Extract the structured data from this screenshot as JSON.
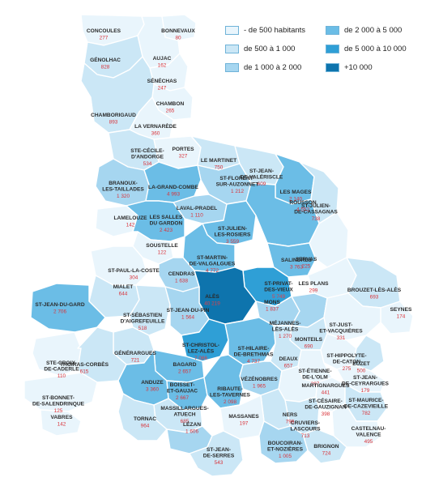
{
  "legend": [
    {
      "label": "- de 500 habitants",
      "color": "#e9f5fc"
    },
    {
      "label": "de 500 à 1 000",
      "color": "#cbe7f6"
    },
    {
      "label": "de 1 000 à 2 000",
      "color": "#a6d6f0"
    },
    {
      "label": "de 2 000 à 5 000",
      "color": "#6bbde6"
    },
    {
      "label": "de 5 000 à 10 000",
      "color": "#2f9fd6"
    },
    {
      "label": "+10 000",
      "color": "#0e74ad"
    }
  ],
  "communes": [
    {
      "name": [
        "CONCOULES"
      ],
      "pop": "277",
      "cls": 0
    },
    {
      "name": [
        "BONNEVAUX"
      ],
      "pop": "80",
      "cls": 0
    },
    {
      "name": [
        "AUJAC"
      ],
      "pop": "162",
      "cls": 0
    },
    {
      "name": [
        "GÉNOLHAC"
      ],
      "pop": "828",
      "cls": 1
    },
    {
      "name": [
        "SÉNÉCHAS"
      ],
      "pop": "247",
      "cls": 0
    },
    {
      "name": [
        "CHAMBON"
      ],
      "pop": "265",
      "cls": 0
    },
    {
      "name": [
        "CHAMBORIGAUD"
      ],
      "pop": "893",
      "cls": 1
    },
    {
      "name": [
        "LA VERNARÈDE"
      ],
      "pop": "360",
      "cls": 0
    },
    {
      "name": [
        "STE-CÉCILE-",
        "D'ANDORGE"
      ],
      "pop": "534",
      "cls": 1
    },
    {
      "name": [
        "PORTES"
      ],
      "pop": "327",
      "cls": 0
    },
    {
      "name": [
        "LE MARTINET"
      ],
      "pop": "750",
      "cls": 1
    },
    {
      "name": [
        "ST-JEAN-",
        "DE-VALÉRISCLE"
      ],
      "pop": "609",
      "cls": 1
    },
    {
      "name": [
        "ST-FLORENT-",
        "SUR-AUZONNET"
      ],
      "pop": "1 212",
      "cls": 2
    },
    {
      "name": [
        "LES MAGES"
      ],
      "pop": "2 140",
      "cls": 3
    },
    {
      "name": [
        "BRANOUX-",
        "LES-TAILLADES"
      ],
      "pop": "1 320",
      "cls": 2
    },
    {
      "name": [
        "LA-GRAND-COMBE"
      ],
      "pop": "4 993",
      "cls": 3
    },
    {
      "name": [
        "ST-JULIEN-",
        "DE-CASSAGNAS"
      ],
      "pop": "738",
      "cls": 1
    },
    {
      "name": [
        "LAVAL-PRADEL"
      ],
      "pop": "1 110",
      "cls": 2
    },
    {
      "name": [
        "LAMELOUZE"
      ],
      "pop": "142",
      "cls": 0
    },
    {
      "name": [
        "LES SALLES",
        "DU GARDON"
      ],
      "pop": "2 423",
      "cls": 3
    },
    {
      "name": [
        "ST-JULIEN-",
        "LES-ROSIERS"
      ],
      "pop": "3 559",
      "cls": 3
    },
    {
      "name": [
        "ROUSSON"
      ],
      "pop": "4 552",
      "cls": 3
    },
    {
      "name": [
        "SOUSTELLE"
      ],
      "pop": "122",
      "cls": 0
    },
    {
      "name": [
        "ST-MARTIN-",
        "DE-VALGALGUES"
      ],
      "pop": "4 772",
      "cls": 3
    },
    {
      "name": [
        "SALINDRES"
      ],
      "pop": "3 763",
      "cls": 3
    },
    {
      "name": [
        "SERVAS"
      ],
      "pop": "225",
      "cls": 0
    },
    {
      "name": [
        "ST-PAUL-LA-COSTE"
      ],
      "pop": "304",
      "cls": 0
    },
    {
      "name": [
        "CENDRAS"
      ],
      "pop": "1 638",
      "cls": 2
    },
    {
      "name": [
        "ST-PRIVAT-",
        "DES-VIEUX"
      ],
      "pop": "5 749",
      "cls": 4
    },
    {
      "name": [
        "LES PLANS"
      ],
      "pop": "299",
      "cls": 0
    },
    {
      "name": [
        "BROUZET-LÈS-ALÈS"
      ],
      "pop": "693",
      "cls": 1
    },
    {
      "name": [
        "MIALET"
      ],
      "pop": "644",
      "cls": 1
    },
    {
      "name": [
        "ALÈS"
      ],
      "pop": "40 219",
      "cls": 5
    },
    {
      "name": [
        "MONS"
      ],
      "pop": "1 837",
      "cls": 2
    },
    {
      "name": [
        "ST-SÉBASTIEN",
        "D'AIGREFEUILLE"
      ],
      "pop": "518",
      "cls": 1
    },
    {
      "name": [
        "ST-JEAN-DU-PIN"
      ],
      "pop": "1 564",
      "cls": 2
    },
    {
      "name": [
        "SEYNES"
      ],
      "pop": "174",
      "cls": 0
    },
    {
      "name": [
        "MÉJANNES-",
        "LÈS-ALÈS"
      ],
      "pop": "1 270",
      "cls": 2
    },
    {
      "name": [
        "ST-JUST-",
        "ET-VACQUIÈRES"
      ],
      "pop": "331",
      "cls": 0
    },
    {
      "name": [
        "ST-JEAN-DU-GARD"
      ],
      "pop": "2 706",
      "cls": 3
    },
    {
      "name": [
        "MONTEILS"
      ],
      "pop": "690",
      "cls": 1
    },
    {
      "name": [
        "ST-CHRISTOL-",
        "LEZ-ALÈS"
      ],
      "pop": "7 086",
      "cls": 4
    },
    {
      "name": [
        "ST-HILAIRE-",
        "DE-BRETHMAS"
      ],
      "pop": "4 737",
      "cls": 3
    },
    {
      "name": [
        "GÉNÉRARGUES"
      ],
      "pop": "721",
      "cls": 1
    },
    {
      "name": [
        "ST-HIPPOLYTE-",
        "DE-CATON"
      ],
      "pop": "275",
      "cls": 0
    },
    {
      "name": [
        "EUZET"
      ],
      "pop": "500",
      "cls": 1
    },
    {
      "name": [
        "STE-CROIX-",
        "DE-CADERLE"
      ],
      "pop": "110",
      "cls": 0
    },
    {
      "name": [
        "DEAUX"
      ],
      "pop": "657",
      "cls": 1
    },
    {
      "name": [
        "THOIRAS-CORBÈS"
      ],
      "pop": "615",
      "cls": 1
    },
    {
      "name": [
        "BAGARD"
      ],
      "pop": "2 657",
      "cls": 3
    },
    {
      "name": [
        "ST-ÉTIENNE-",
        "DE-L'OLM"
      ],
      "pop": "397",
      "cls": 0
    },
    {
      "name": [
        "ST-JEAN-",
        "DE-CEYRARGUES"
      ],
      "pop": "179",
      "cls": 0
    },
    {
      "name": [
        "VÉZÉNOBRES"
      ],
      "pop": "1 965",
      "cls": 2
    },
    {
      "name": [
        "MARTIGNARGUES"
      ],
      "pop": "441",
      "cls": 0
    },
    {
      "name": [
        "ST-CÉSAIRE-",
        "DE-GAUZIGNAN"
      ],
      "pop": "398",
      "cls": 0
    },
    {
      "name": [
        "ANDUZE"
      ],
      "pop": "3 360",
      "cls": 3
    },
    {
      "name": [
        "BOISSET-",
        "ET-GAUJAC"
      ],
      "pop": "2 667",
      "cls": 3
    },
    {
      "name": [
        "RIBAUTE-",
        "LES-TAVERNES"
      ],
      "pop": "2 098",
      "cls": 3
    },
    {
      "name": [
        "ST-MAURICE-",
        "DE-CAZEVIEILLE"
      ],
      "pop": "782",
      "cls": 1
    },
    {
      "name": [
        "ST-BONNET-",
        "DE-SALENDRINQUE"
      ],
      "pop": "125",
      "cls": 0
    },
    {
      "name": [
        "CRUVIERS-",
        "LASCOURS"
      ],
      "pop": "713",
      "cls": 1
    },
    {
      "name": [
        "NERS"
      ],
      "pop": "799",
      "cls": 1
    },
    {
      "name": [
        "VABRES"
      ],
      "pop": "142",
      "cls": 0
    },
    {
      "name": [
        "MASSILLARGUES-",
        "ATUECH"
      ],
      "pop": "685",
      "cls": 1
    },
    {
      "name": [
        "TORNAC"
      ],
      "pop": "964",
      "cls": 1
    },
    {
      "name": [
        "MASSANES"
      ],
      "pop": "197",
      "cls": 0
    },
    {
      "name": [
        "LÉZAN"
      ],
      "pop": "1 606",
      "cls": 2
    },
    {
      "name": [
        "CASTELNAU-",
        "VALENCE"
      ],
      "pop": "495",
      "cls": 0
    },
    {
      "name": [
        "BOUCOIRAN-",
        "ET-NOZIÈRES"
      ],
      "pop": "1 005",
      "cls": 2
    },
    {
      "name": [
        "BRIGNON"
      ],
      "pop": "724",
      "cls": 1
    },
    {
      "name": [
        "ST-JEAN-",
        "DE-SERRES"
      ],
      "pop": "543",
      "cls": 1
    }
  ]
}
